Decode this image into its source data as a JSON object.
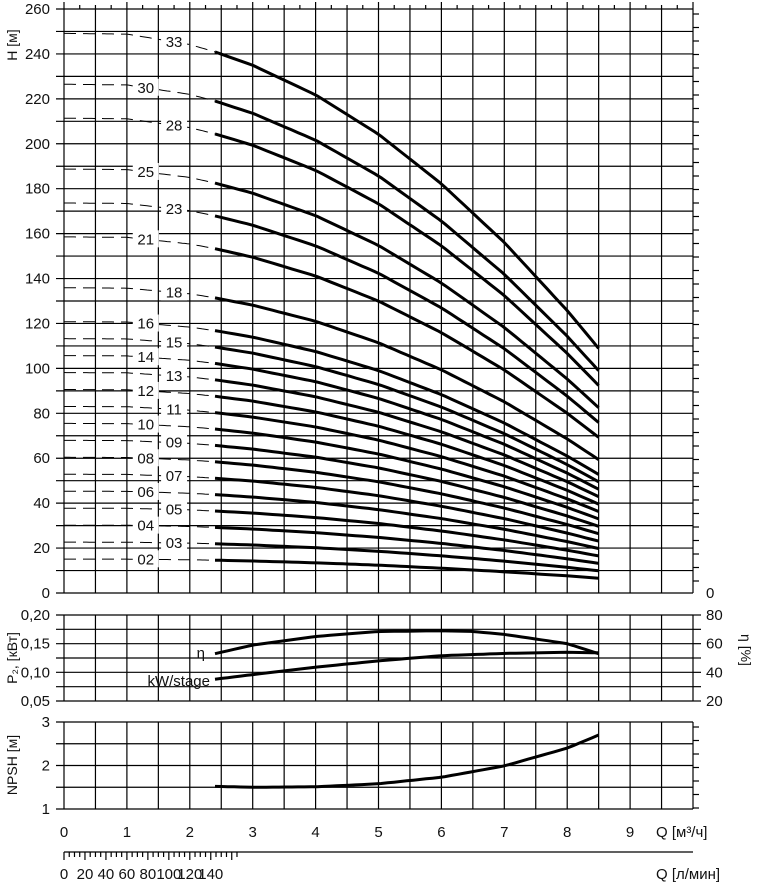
{
  "chart_data": [
    {
      "type": "line",
      "title": "",
      "ylabel": "H [м]",
      "xlabel": "Q [м³/ч]",
      "xlim": [
        0,
        10
      ],
      "ylim": [
        0,
        260
      ],
      "yticks": [
        "0",
        "20",
        "40",
        "60",
        "80",
        "100",
        "120",
        "140",
        "160",
        "180",
        "200",
        "220",
        "240",
        "260"
      ],
      "right_axis_label": "0",
      "grid": true,
      "operating_range_q": [
        2.4,
        8.5
      ],
      "head_per_stage": {
        "q": [
          0,
          1,
          2,
          2.4,
          3,
          4,
          5,
          6,
          7,
          8,
          8.5
        ],
        "h": [
          7.55,
          7.54,
          7.4,
          7.3,
          7.12,
          6.72,
          6.19,
          5.52,
          4.73,
          3.81,
          3.3
        ]
      },
      "series": [
        {
          "name": "33",
          "stages": 33
        },
        {
          "name": "30",
          "stages": 30
        },
        {
          "name": "28",
          "stages": 28
        },
        {
          "name": "25",
          "stages": 25
        },
        {
          "name": "23",
          "stages": 23
        },
        {
          "name": "21",
          "stages": 21
        },
        {
          "name": "18",
          "stages": 18
        },
        {
          "name": "16",
          "stages": 16
        },
        {
          "name": "15",
          "stages": 15
        },
        {
          "name": "14",
          "stages": 14
        },
        {
          "name": "13",
          "stages": 13
        },
        {
          "name": "12",
          "stages": 12
        },
        {
          "name": "11",
          "stages": 11
        },
        {
          "name": "10",
          "stages": 10
        },
        {
          "name": "09",
          "stages": 9
        },
        {
          "name": "08",
          "stages": 8
        },
        {
          "name": "07",
          "stages": 7
        },
        {
          "name": "06",
          "stages": 6
        },
        {
          "name": "05",
          "stages": 5
        },
        {
          "name": "04",
          "stages": 4
        },
        {
          "name": "03",
          "stages": 3
        },
        {
          "name": "02",
          "stages": 2
        }
      ]
    },
    {
      "type": "line",
      "ylabel": "P₂, [кВт]",
      "ylabel_right": "η [%]",
      "ylim": [
        0.05,
        0.2
      ],
      "ylim_right": [
        20,
        80
      ],
      "yticks": [
        "0,05",
        "0,10",
        "0,15",
        "0,20"
      ],
      "yticks_right": [
        "20",
        "40",
        "60",
        "80"
      ],
      "series": [
        {
          "name": "η",
          "axis": "right",
          "q": [
            2.4,
            3,
            4,
            5,
            6,
            6.5,
            7,
            8,
            8.5
          ],
          "values": [
            53,
            59,
            65,
            68.5,
            69,
            68.5,
            66.5,
            60,
            53
          ]
        },
        {
          "name": "kW/stage",
          "axis": "left",
          "q": [
            2.4,
            3,
            4,
            5,
            6,
            7,
            8,
            8.5
          ],
          "values": [
            0.088,
            0.096,
            0.109,
            0.12,
            0.129,
            0.133,
            0.135,
            0.134
          ]
        }
      ]
    },
    {
      "type": "line",
      "ylabel": "NPSH [м]",
      "ylim": [
        1,
        3
      ],
      "yticks": [
        "1",
        "2",
        "3"
      ],
      "series": [
        {
          "name": "NPSH",
          "q": [
            2.4,
            3,
            4,
            5,
            6,
            7,
            8,
            8.5
          ],
          "values": [
            1.52,
            1.5,
            1.51,
            1.58,
            1.73,
            1.99,
            2.4,
            2.7
          ]
        }
      ]
    }
  ],
  "x_axis": {
    "label": "Q [м³/ч]",
    "ticks": [
      "0",
      "1",
      "2",
      "3",
      "4",
      "5",
      "6",
      "7",
      "8",
      "9"
    ]
  },
  "x_axis_lmin": {
    "label": "Q [л/мин]",
    "ticks": [
      "0",
      "20",
      "40",
      "60",
      "80",
      "100",
      "120",
      "140"
    ]
  }
}
